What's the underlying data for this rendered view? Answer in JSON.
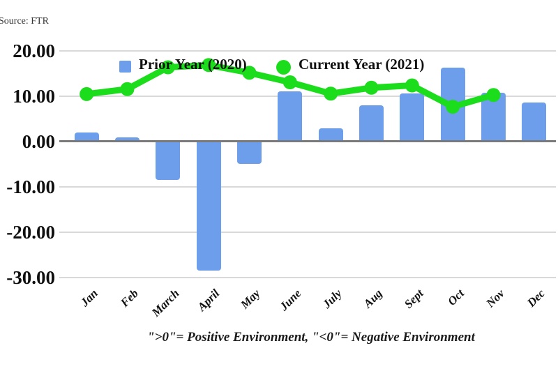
{
  "source_label": "Source: FTR",
  "legend": {
    "prior_label": "Prior Year (2020)",
    "current_label": "Current Year (2021)"
  },
  "footnote": "\">0\"= Positive Environment, \"<0\"= Negative Environment",
  "colors": {
    "bar": "#6d9eeb",
    "line": "#1cdd1c",
    "zero_line": "#7a7a7a",
    "gridline": "#d9d9d9",
    "axis_text": "#0f0f0f"
  },
  "chart_data": {
    "type": "bar",
    "subtype": "combo-bar-line",
    "categories": [
      "Jan",
      "Feb",
      "March",
      "April",
      "May",
      "June",
      "July",
      "Aug",
      "Sept",
      "Oct",
      "Nov",
      "Dec"
    ],
    "series": [
      {
        "name": "Prior Year (2020)",
        "type": "bar",
        "color": "#6d9eeb",
        "values": [
          2.0,
          0.9,
          -8.5,
          -28.5,
          -5.0,
          11.0,
          2.8,
          8.0,
          10.6,
          16.2,
          10.7,
          8.5
        ]
      },
      {
        "name": "Current Year (2021)",
        "type": "line",
        "color": "#1cdd1c",
        "values": [
          10.4,
          11.5,
          16.3,
          16.8,
          15.1,
          13.0,
          10.5,
          11.8,
          12.3,
          7.6,
          10.2,
          null
        ]
      }
    ],
    "y_ticks": [
      {
        "v": 20,
        "label": "20.00"
      },
      {
        "v": 10,
        "label": "10.00"
      },
      {
        "v": 0,
        "label": "0.00"
      },
      {
        "v": -10,
        "label": "-10.00"
      },
      {
        "v": -20,
        "label": "-20.00"
      },
      {
        "v": -30,
        "label": "-30.00"
      }
    ],
    "ylim": [
      -30,
      20
    ],
    "grid": true,
    "legend_position": "top-inside",
    "title": "",
    "xlabel": "",
    "ylabel": ""
  }
}
